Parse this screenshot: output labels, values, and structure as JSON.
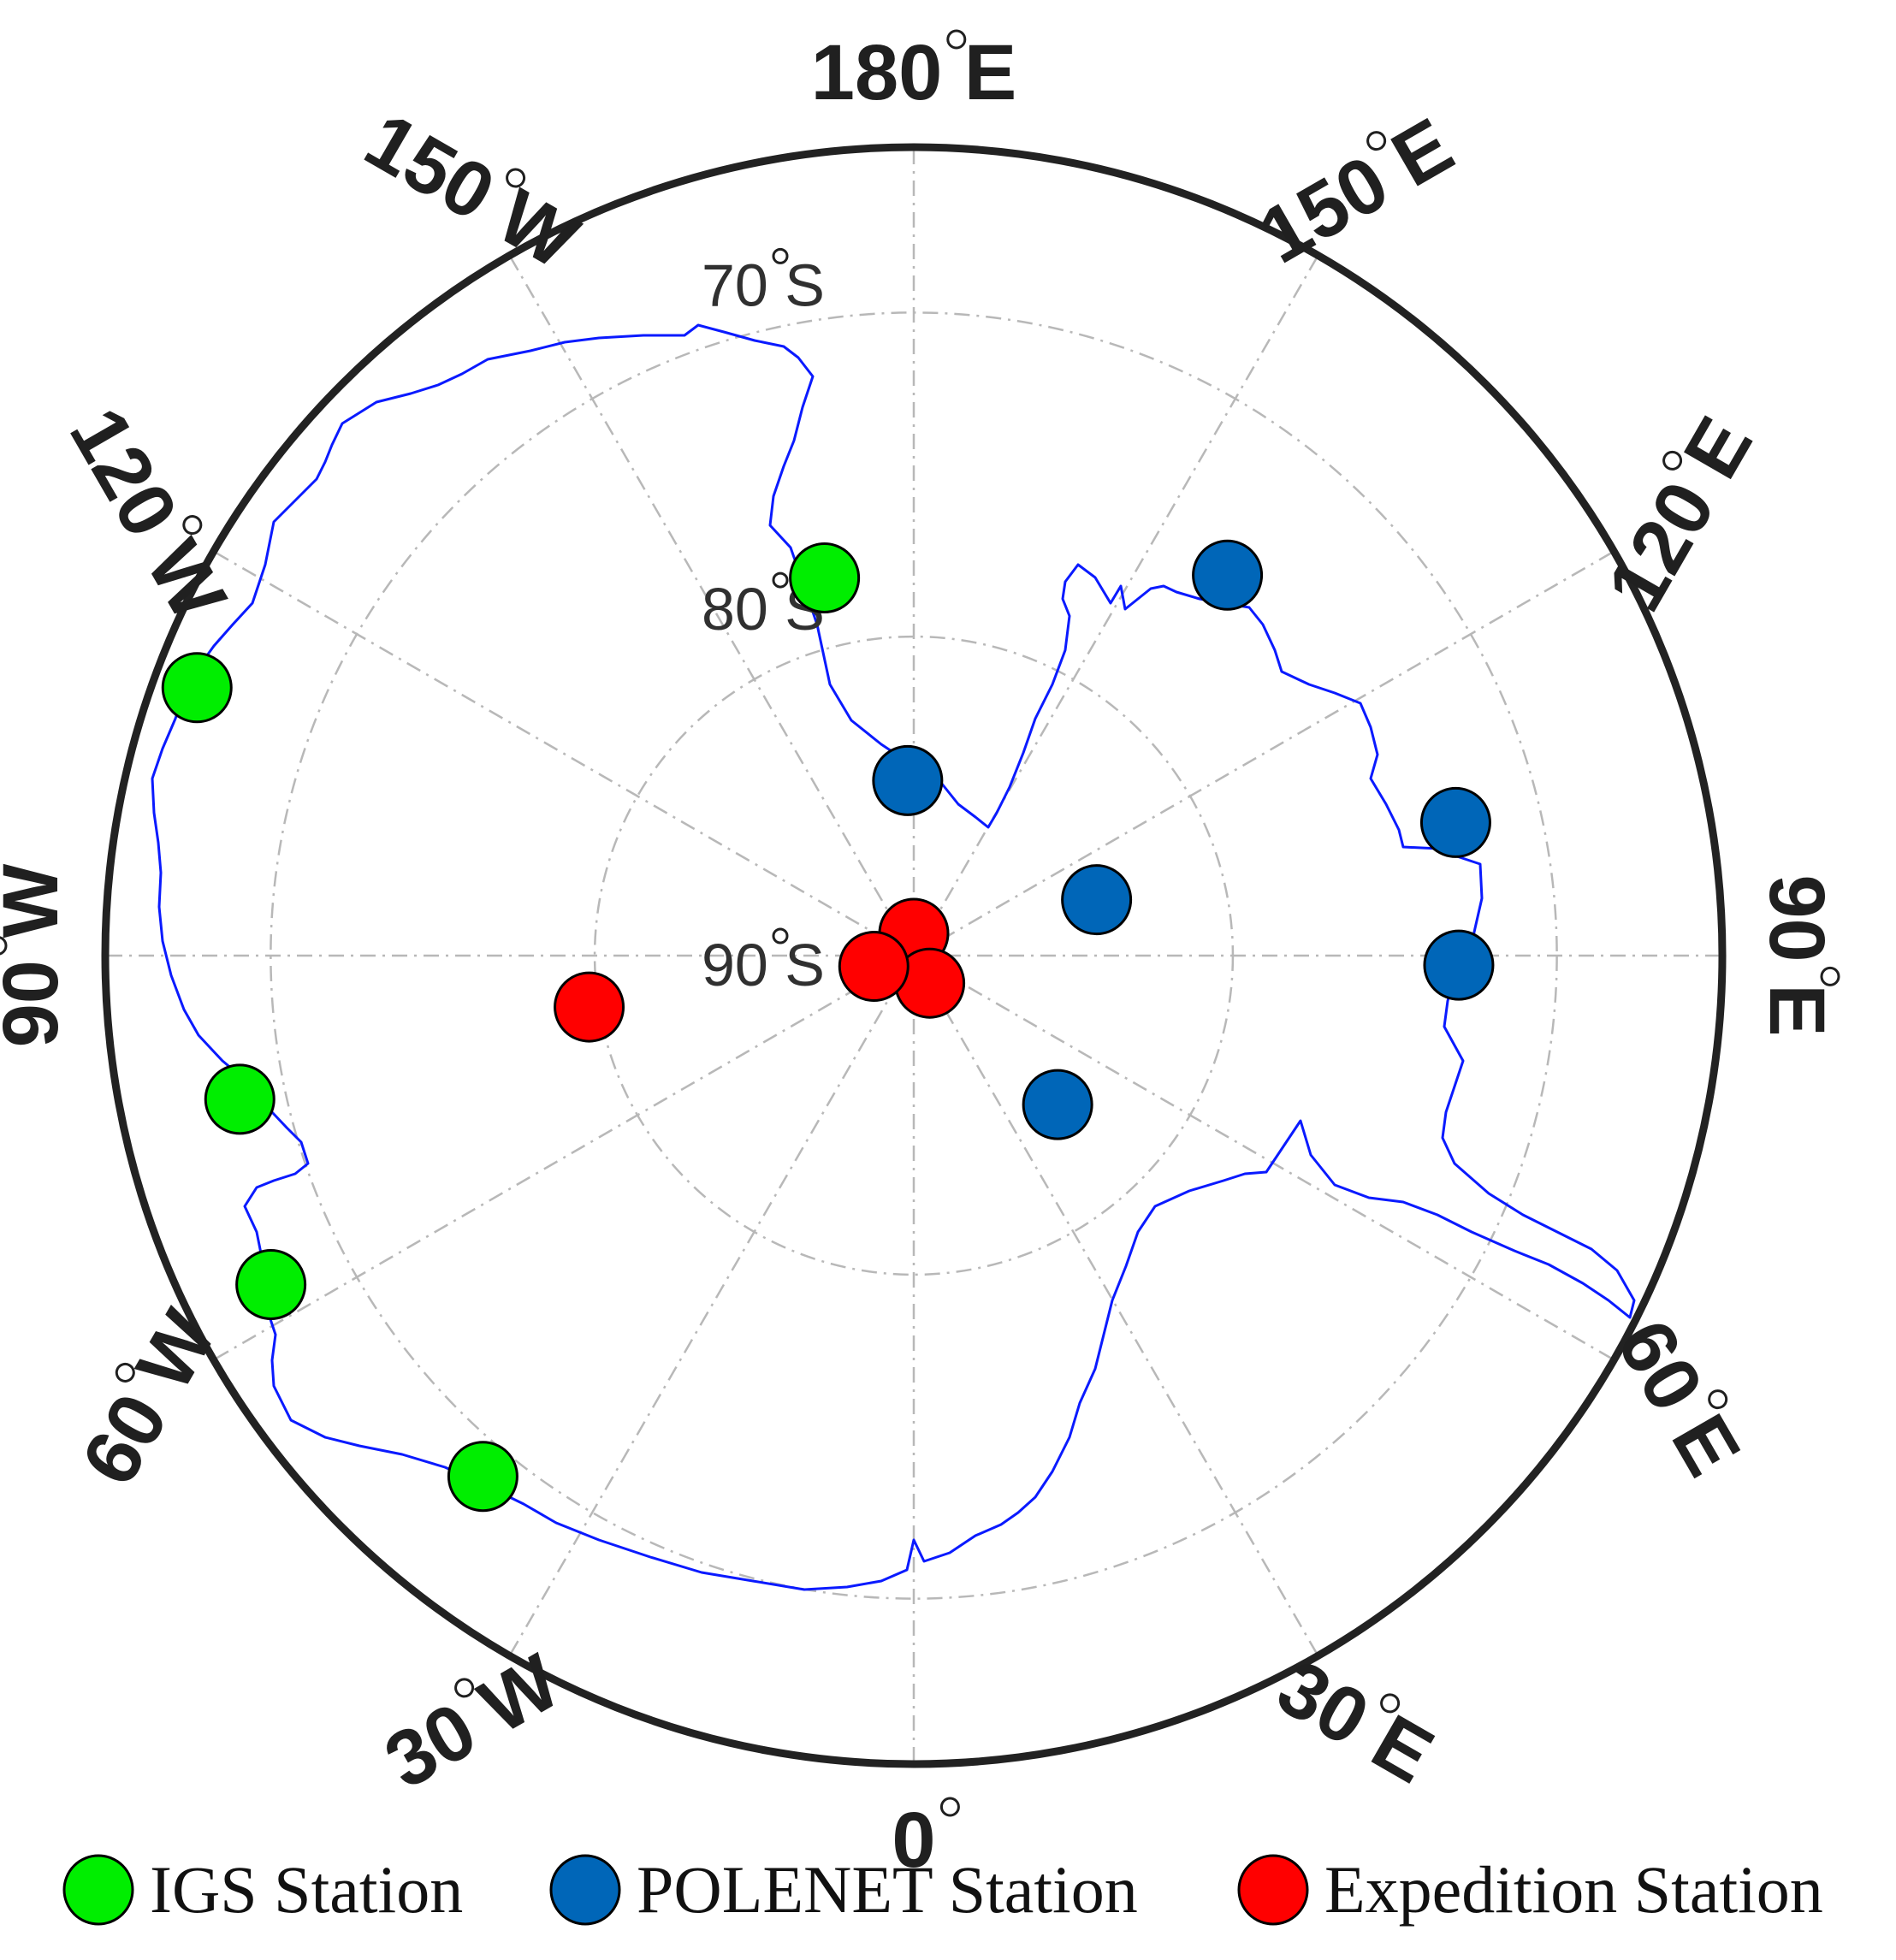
{
  "colors": {
    "igs": "#00ee00",
    "polenet": "#0066b8",
    "expedition": "#ff0000",
    "coastline": "#0a1aff",
    "grid": "#b8b8b8",
    "frame": "#222222"
  },
  "map": {
    "projection": "south polar stereographic",
    "outer_latitude": -65,
    "longitude_labels": [
      {
        "lon": 180,
        "text": "180",
        "hemi": "E"
      },
      {
        "lon": 150,
        "text": "150",
        "hemi": "W"
      },
      {
        "lon": 120,
        "text": "120",
        "hemi": "W"
      },
      {
        "lon": 90,
        "text": "90",
        "hemi": "W"
      },
      {
        "lon": 60,
        "text": "60",
        "hemi": "W"
      },
      {
        "lon": 30,
        "text": "30",
        "hemi": "W"
      },
      {
        "lon": 0,
        "text": "0",
        "hemi": ""
      },
      {
        "lon": -30,
        "text": "30",
        "hemi": "E"
      },
      {
        "lon": -60,
        "text": "60",
        "hemi": "E"
      },
      {
        "lon": -90,
        "text": "90",
        "hemi": "E"
      },
      {
        "lon": -120,
        "text": "120",
        "hemi": "E"
      },
      {
        "lon": -150,
        "text": "150",
        "hemi": "E"
      }
    ],
    "latitude_labels": [
      {
        "lat": -70,
        "text": "70",
        "hemi": "S"
      },
      {
        "lat": -80,
        "text": "80",
        "hemi": "S"
      },
      {
        "lat": -90,
        "text": "90",
        "hemi": "S"
      }
    ]
  },
  "stations": {
    "igs": [
      {
        "lat": -77.85,
        "lon": 166.7
      },
      {
        "lat": -66.3,
        "lon": 110.5
      },
      {
        "lat": -68.6,
        "lon": 77.97
      },
      {
        "lat": -67.6,
        "lon": 62.9
      },
      {
        "lat": -69.0,
        "lon": 39.6
      }
    ],
    "polenet": [
      {
        "lat": -84.5,
        "lon": 178.0
      },
      {
        "lat": -74.6,
        "lon": -140.5
      },
      {
        "lat": -72.6,
        "lon": -103.8
      },
      {
        "lat": -73.0,
        "lon": -89.0
      },
      {
        "lat": -84.0,
        "lon": -107.0
      },
      {
        "lat": -83.5,
        "lon": -44.0
      }
    ],
    "expedition": [
      {
        "lat": -89.3,
        "lon": 180.0
      },
      {
        "lat": -89.0,
        "lon": -30.0
      },
      {
        "lat": -88.7,
        "lon": 75.0
      },
      {
        "lat": -79.7,
        "lon": 81.0
      }
    ]
  },
  "legend": [
    {
      "key": "igs",
      "label": "IGS Station"
    },
    {
      "key": "polenet",
      "label": "POLENET Station"
    },
    {
      "key": "expedition",
      "label": "Expedition Station"
    }
  ]
}
